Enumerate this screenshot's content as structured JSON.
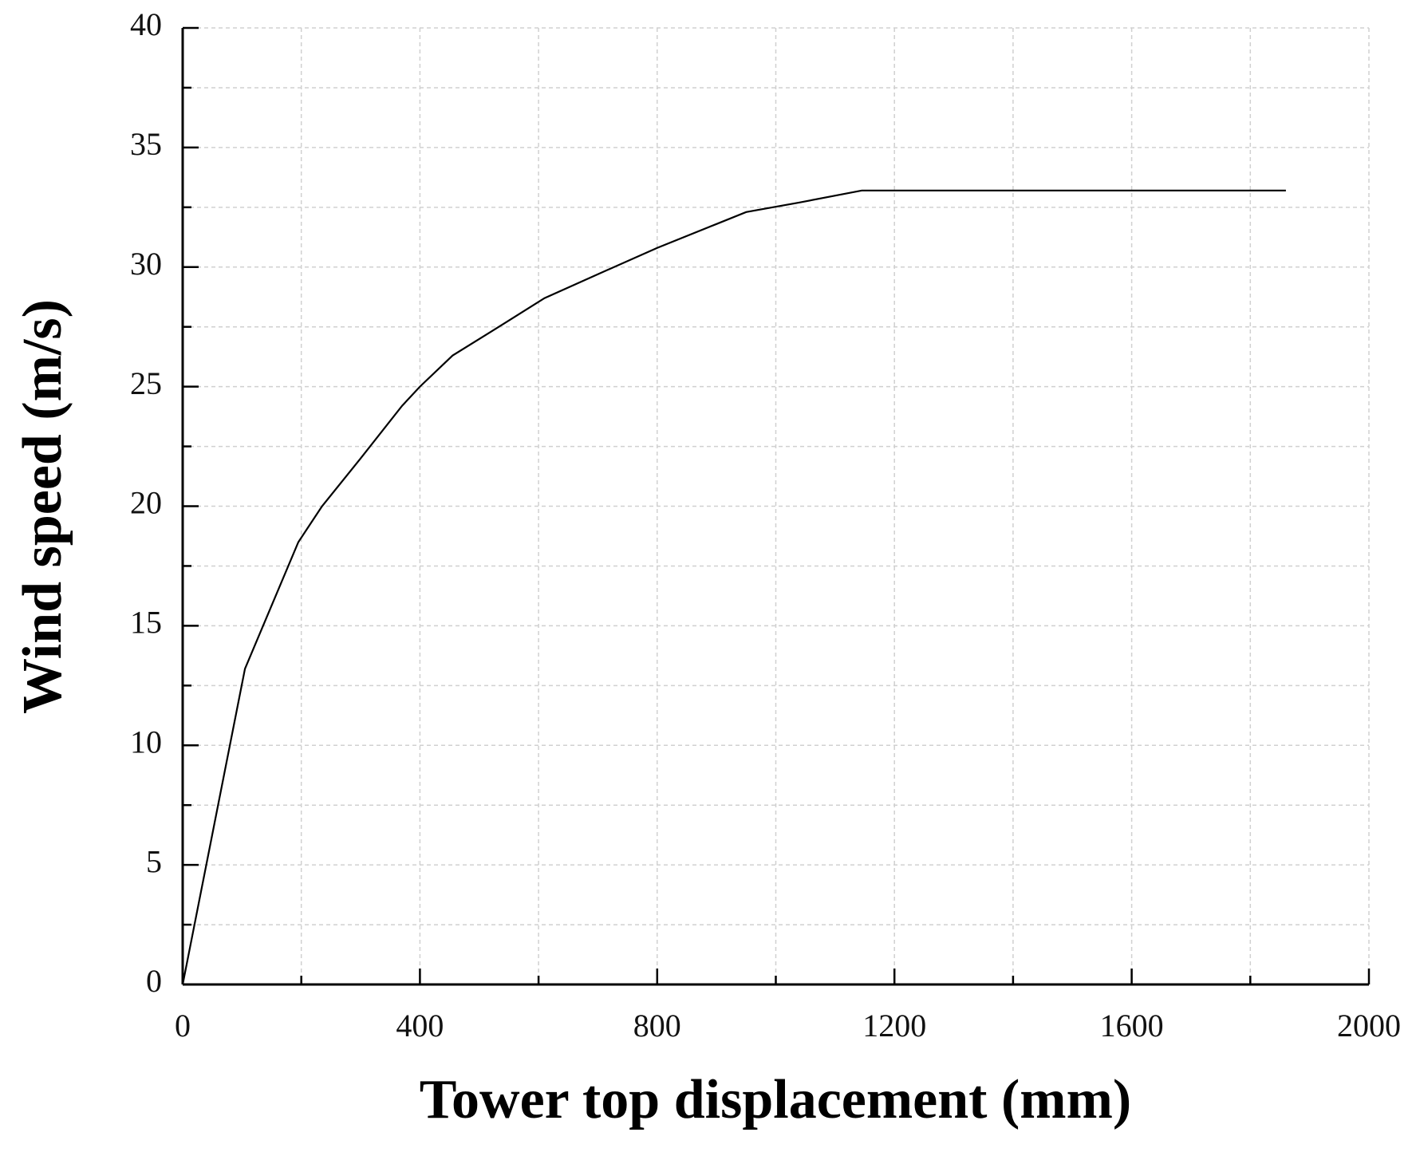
{
  "chart_data": {
    "type": "line",
    "x_label": "Tower top displacement (mm)",
    "y_label": "Wind speed (m/s)",
    "series": [
      {
        "color": "#000000",
        "x": [
          0,
          105,
          195,
          235,
          300,
          370,
          400,
          455,
          520,
          610,
          700,
          800,
          900,
          950,
          1040,
          1145,
          1860
        ],
        "values": [
          0,
          13.2,
          18.5,
          20,
          22,
          24.2,
          25,
          26.3,
          27.3,
          28.7,
          29.7,
          30.8,
          31.8,
          32.3,
          32.7,
          33.2,
          33.2
        ]
      }
    ],
    "xlim": [
      0,
      2000
    ],
    "ylim": [
      0,
      40
    ],
    "xticks": [
      0,
      400,
      800,
      1200,
      1600,
      2000
    ],
    "yticks": [
      0,
      5,
      10,
      15,
      20,
      25,
      30,
      35,
      40
    ],
    "xminorticks": [
      200,
      600,
      1000,
      1400,
      1800
    ],
    "yminorticks": [
      2.5,
      7.5,
      12.5,
      17.5,
      22.5,
      27.5,
      32.5,
      37.5
    ],
    "grid": true
  }
}
